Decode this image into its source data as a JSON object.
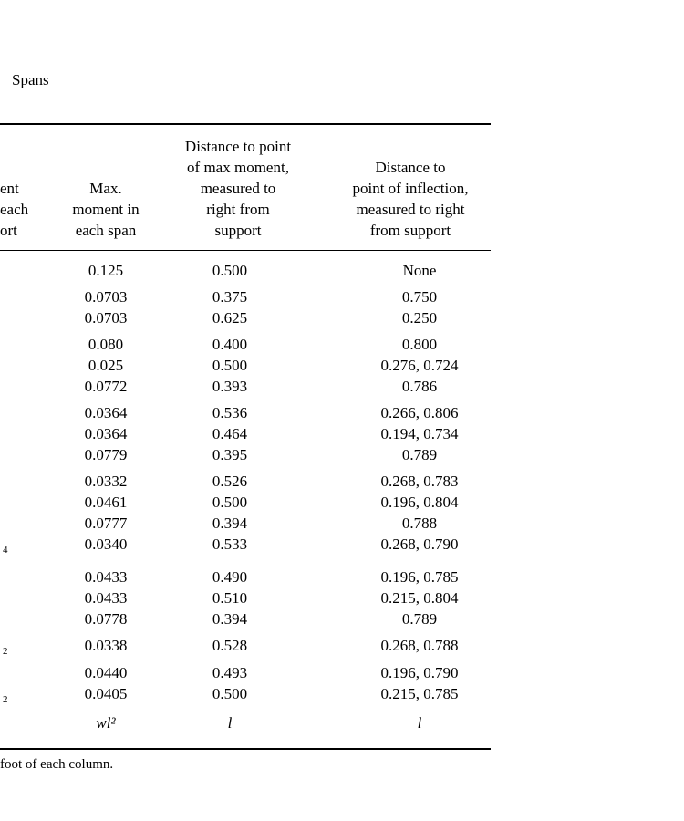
{
  "page": {
    "title_fragment": "Spans",
    "footnote_fragment": "foot of each column."
  },
  "table": {
    "headers": {
      "col1_lines": [
        "ent",
        "each",
        "ort"
      ],
      "col2_lines": [
        "Max.",
        "moment in",
        "each span"
      ],
      "col3_lines": [
        "Distance to point",
        "of max moment,",
        "measured to",
        "right from",
        "support"
      ],
      "col4_lines": [
        "Distance to",
        "point of inflection,",
        "measured to right",
        "from support"
      ]
    },
    "groups": [
      {
        "rows": [
          {
            "c1": "",
            "c2": "0.125",
            "c3": "0.500",
            "c4": "None"
          }
        ]
      },
      {
        "rows": [
          {
            "c1": "",
            "c2": "0.0703",
            "c3": "0.375",
            "c4": "0.750"
          },
          {
            "c1": "",
            "c2": "0.0703",
            "c3": "0.625",
            "c4": "0.250"
          }
        ]
      },
      {
        "rows": [
          {
            "c1": "",
            "c2": "0.080",
            "c3": "0.400",
            "c4": "0.800"
          },
          {
            "c1": "",
            "c2": "0.025",
            "c3": "0.500",
            "c4": "0.276, 0.724"
          },
          {
            "c1": "",
            "c2": "0.0772",
            "c3": "0.393",
            "c4": "0.786"
          }
        ]
      },
      {
        "rows": [
          {
            "c1": "",
            "c2": "0.0364",
            "c3": "0.536",
            "c4": "0.266, 0.806"
          },
          {
            "c1": "",
            "c2": "0.0364",
            "c3": "0.464",
            "c4": "0.194, 0.734"
          },
          {
            "c1": "",
            "c2": "0.0779",
            "c3": "0.395",
            "c4": "0.789"
          }
        ]
      },
      {
        "rows": [
          {
            "c1": "",
            "c2": "0.0332",
            "c3": "0.526",
            "c4": "0.268, 0.783"
          },
          {
            "c1": "",
            "c2": "0.0461",
            "c3": "0.500",
            "c4": "0.196, 0.804"
          },
          {
            "c1": "",
            "c2": "0.0777",
            "c3": "0.394",
            "c4": "0.788"
          },
          {
            "c1": "4",
            "c2": "0.0340",
            "c3": "0.533",
            "c4": "0.268, 0.790"
          }
        ]
      },
      {
        "rows": [
          {
            "c1": "",
            "c2": "0.0433",
            "c3": "0.490",
            "c4": "0.196, 0.785"
          },
          {
            "c1": "",
            "c2": "0.0433",
            "c3": "0.510",
            "c4": "0.215, 0.804"
          },
          {
            "c1": "",
            "c2": "0.0778",
            "c3": "0.394",
            "c4": "0.789"
          }
        ]
      },
      {
        "rows": [
          {
            "c1": "2",
            "c2": "0.0338",
            "c3": "0.528",
            "c4": "0.268, 0.788"
          },
          {
            "c1": "",
            "c2": "0.0440",
            "c3": "0.493",
            "c4": "0.196, 0.790"
          },
          {
            "c1": "2",
            "c2": "0.0405",
            "c3": "0.500",
            "c4": "0.215, 0.785"
          }
        ]
      }
    ],
    "footer": {
      "c1": "",
      "c2": "wl²",
      "c3": "l",
      "c4": "l"
    }
  }
}
